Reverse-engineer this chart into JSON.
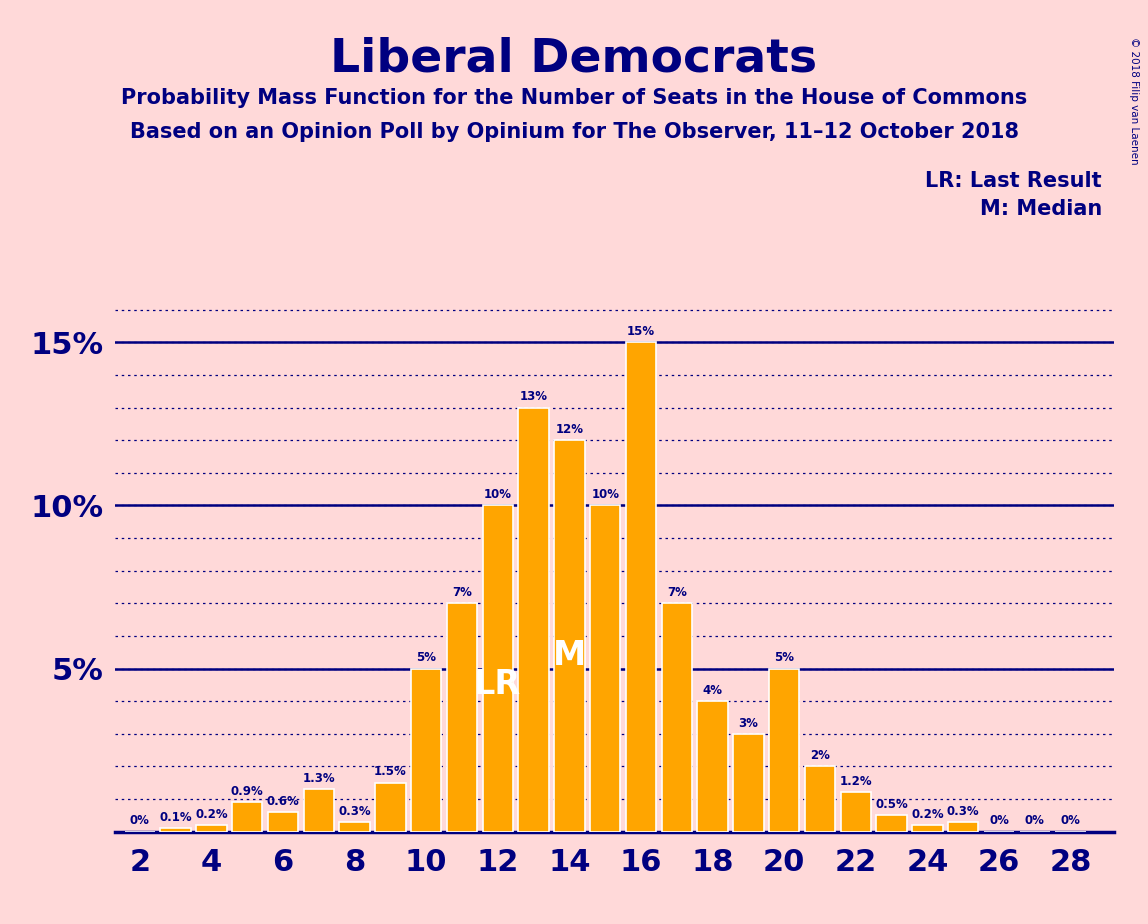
{
  "title": "Liberal Democrats",
  "subtitle1": "Probability Mass Function for the Number of Seats in the House of Commons",
  "subtitle2": "Based on an Opinion Poll by Opinium for The Observer, 11–12 October 2018",
  "copyright": "© 2018 Filip van Laenen",
  "legend_lr": "LR: Last Result",
  "legend_m": "M: Median",
  "background_color": "#FFD9D9",
  "bar_color": "#FFA500",
  "bar_edge_color": "#FFFFFF",
  "title_color": "#000080",
  "axis_color": "#000080",
  "label_color": "#000080",
  "grid_color": "#000080",
  "lr_color": "#FFFFFF",
  "m_color": "#FFFFFF",
  "seats": [
    2,
    3,
    4,
    5,
    6,
    7,
    8,
    9,
    10,
    11,
    12,
    13,
    14,
    15,
    16,
    17,
    18,
    19,
    20,
    21,
    22,
    23,
    24,
    25,
    26,
    27,
    28
  ],
  "probabilities": [
    0.0,
    0.1,
    0.2,
    0.9,
    0.6,
    1.3,
    0.3,
    1.5,
    5.0,
    7.0,
    10.0,
    13.0,
    12.0,
    10.0,
    15.0,
    7.0,
    4.0,
    3.0,
    5.0,
    2.0,
    1.2,
    0.5,
    0.2,
    0.3,
    0.0,
    0.0,
    0.0
  ],
  "prob_labels": [
    "0%",
    "0.1%",
    "0.2%",
    "0.9%",
    "0.6%",
    "1.3%",
    "0.3%",
    "1.5%",
    "5%",
    "7%",
    "10%",
    "13%",
    "12%",
    "10%",
    "15%",
    "7%",
    "4%",
    "3%",
    "5%",
    "2%",
    "1.2%",
    "0.5%",
    "0.2%",
    "0.3%",
    "0%",
    "0%",
    "0%"
  ],
  "last_result": 12,
  "median": 14,
  "ylim": [
    0,
    17
  ],
  "xlabel_seats": [
    2,
    4,
    6,
    8,
    10,
    12,
    14,
    16,
    18,
    20,
    22,
    24,
    26,
    28
  ]
}
